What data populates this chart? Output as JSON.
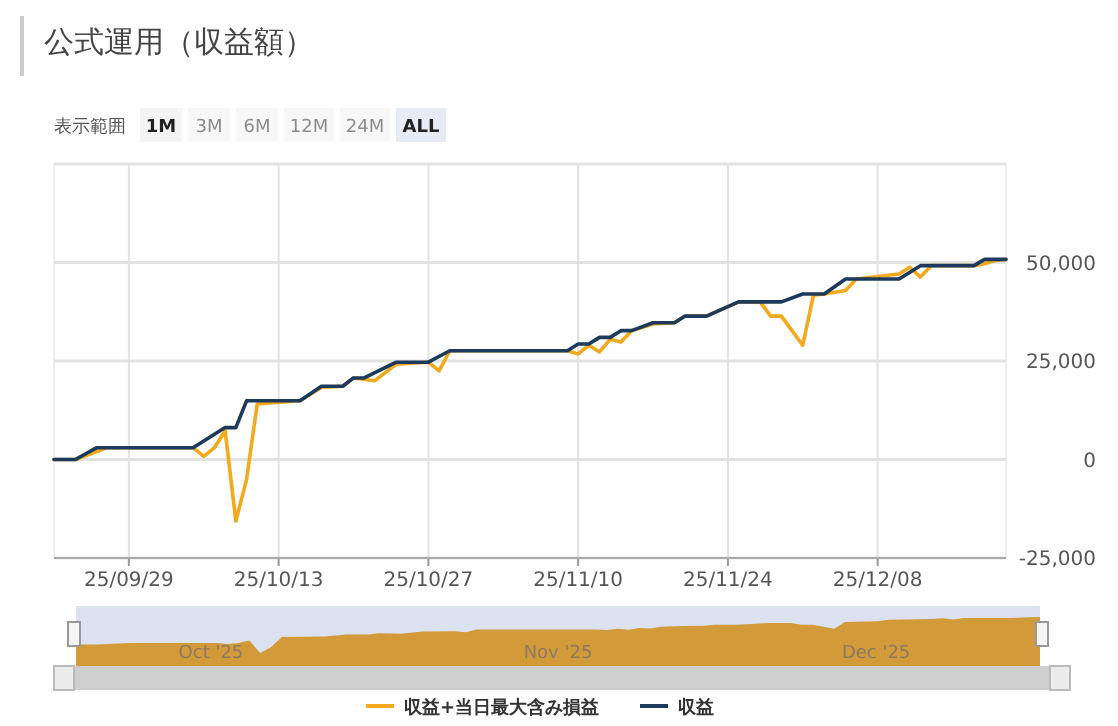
{
  "chart_data": {
    "type": "line",
    "title": "公式運用（収益額）",
    "annotations": [
      "表示範囲",
      "1M",
      "3M",
      "6M",
      "12M",
      "24M",
      "ALL",
      "Oct '25",
      "Nov '25",
      "Dec '25"
    ],
    "xlim": [
      "2025-09-22",
      "2025-12-20"
    ],
    "xticks": [
      {
        "value": "2025-09-29",
        "label": "25/09/29"
      },
      {
        "value": "2025-10-13",
        "label": "25/10/13"
      },
      {
        "value": "2025-10-27",
        "label": "25/10/27"
      },
      {
        "value": "2025-11-10",
        "label": "25/11/10"
      },
      {
        "value": "2025-11-24",
        "label": "25/11/24"
      },
      {
        "value": "2025-12-08",
        "label": "25/12/08"
      }
    ],
    "ylim": [
      -25000,
      75000
    ],
    "yticks": [
      {
        "value": -25000,
        "label": "-25,000"
      },
      0,
      {
        "value": 25000,
        "label": "25,000"
      },
      {
        "value": 50000,
        "label": "50,000"
      },
      {
        "value": 75000,
        "label": null
      }
    ],
    "grid": true,
    "legend": "bottom",
    "marker": "none",
    "line_style": "solid",
    "series": [
      {
        "name": "収益+当日最大含み損益",
        "color": "#f2a91d",
        "x": [
          "2025-09-22",
          "2025-09-24",
          "2025-09-26",
          "2025-09-27",
          "2025-10-05",
          "2025-10-06",
          "2025-10-07",
          "2025-10-08",
          "2025-10-09",
          "2025-10-10",
          "2025-10-11",
          "2025-10-15",
          "2025-10-17",
          "2025-10-19",
          "2025-10-20",
          "2025-10-22",
          "2025-10-24",
          "2025-10-27",
          "2025-10-28",
          "2025-10-29",
          "2025-11-09",
          "2025-11-10",
          "2025-11-11",
          "2025-11-12",
          "2025-11-13",
          "2025-11-14",
          "2025-11-15",
          "2025-11-17",
          "2025-11-19",
          "2025-11-20",
          "2025-11-22",
          "2025-11-25",
          "2025-11-27",
          "2025-11-28",
          "2025-11-29",
          "2025-12-01",
          "2025-12-02",
          "2025-12-03",
          "2025-12-05",
          "2025-12-06",
          "2025-12-10",
          "2025-12-11",
          "2025-12-12",
          "2025-12-13",
          "2025-12-17",
          "2025-12-18",
          "2025-12-19",
          "2025-12-20"
        ],
        "values": [
          0,
          0,
          2000,
          3000,
          3000,
          800,
          3000,
          7300,
          -15600,
          -5100,
          14100,
          14900,
          18300,
          18600,
          20700,
          20000,
          24200,
          24700,
          22500,
          27600,
          27600,
          26800,
          29000,
          27300,
          30500,
          29800,
          32700,
          34400,
          34700,
          36400,
          36400,
          40000,
          40000,
          36400,
          36400,
          29000,
          41700,
          42000,
          42900,
          45800,
          47100,
          48800,
          46300,
          49200,
          49200,
          49700,
          50500,
          50800
        ]
      },
      {
        "name": "収益",
        "color": "#1b3a5c",
        "x": [
          "2025-09-22",
          "2025-09-24",
          "2025-09-26",
          "2025-10-05",
          "2025-10-08",
          "2025-10-09",
          "2025-10-10",
          "2025-10-15",
          "2025-10-17",
          "2025-10-19",
          "2025-10-20",
          "2025-10-21",
          "2025-10-24",
          "2025-10-27",
          "2025-10-29",
          "2025-11-09",
          "2025-11-10",
          "2025-11-11",
          "2025-11-12",
          "2025-11-13",
          "2025-11-14",
          "2025-11-15",
          "2025-11-17",
          "2025-11-19",
          "2025-11-20",
          "2025-11-22",
          "2025-11-25",
          "2025-11-29",
          "2025-12-01",
          "2025-12-03",
          "2025-12-05",
          "2025-12-10",
          "2025-12-12",
          "2025-12-17",
          "2025-12-18",
          "2025-12-20"
        ],
        "values": [
          0,
          0,
          3000,
          3000,
          8100,
          8100,
          14900,
          14900,
          18600,
          18600,
          20700,
          20700,
          24700,
          24700,
          27600,
          27600,
          29300,
          29300,
          31000,
          31000,
          32700,
          32700,
          34700,
          34700,
          36400,
          36400,
          40000,
          40000,
          42000,
          42000,
          45800,
          45800,
          49200,
          49200,
          50800,
          50800
        ]
      }
    ]
  }
}
